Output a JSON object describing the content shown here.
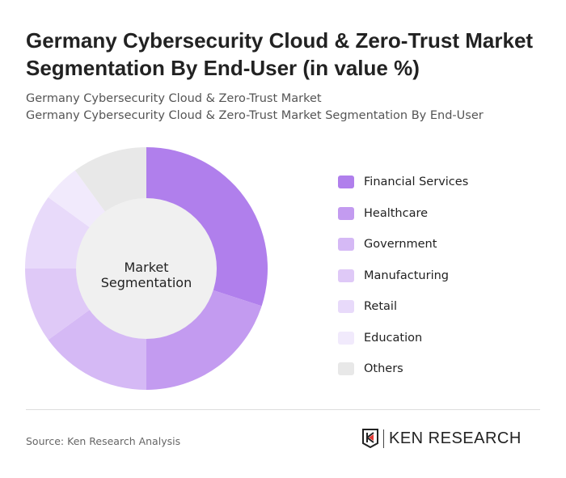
{
  "title": "Germany Cybersecurity Cloud & Zero-Trust Market Segmentation By End-User (in value %)",
  "subtitle1": "Germany Cybersecurity Cloud & Zero-Trust Market",
  "subtitle2": "Germany Cybersecurity Cloud & Zero-Trust Market Segmentation By End-User",
  "source": "Source: Ken Research Analysis",
  "logo_text": "KEN RESEARCH",
  "chart_data": {
    "type": "pie",
    "donut": true,
    "center_label": "Market Segmentation",
    "legend_position": "right",
    "categories": [
      "Financial Services",
      "Healthcare",
      "Government",
      "Manufacturing",
      "Retail",
      "Education",
      "Others"
    ],
    "values": [
      30,
      20,
      15,
      10,
      10,
      5,
      10
    ],
    "colors": [
      "#b07fec",
      "#c39bf0",
      "#d5b9f5",
      "#dfc9f7",
      "#e8dafa",
      "#f1eafc",
      "#e8e8e8"
    ]
  }
}
